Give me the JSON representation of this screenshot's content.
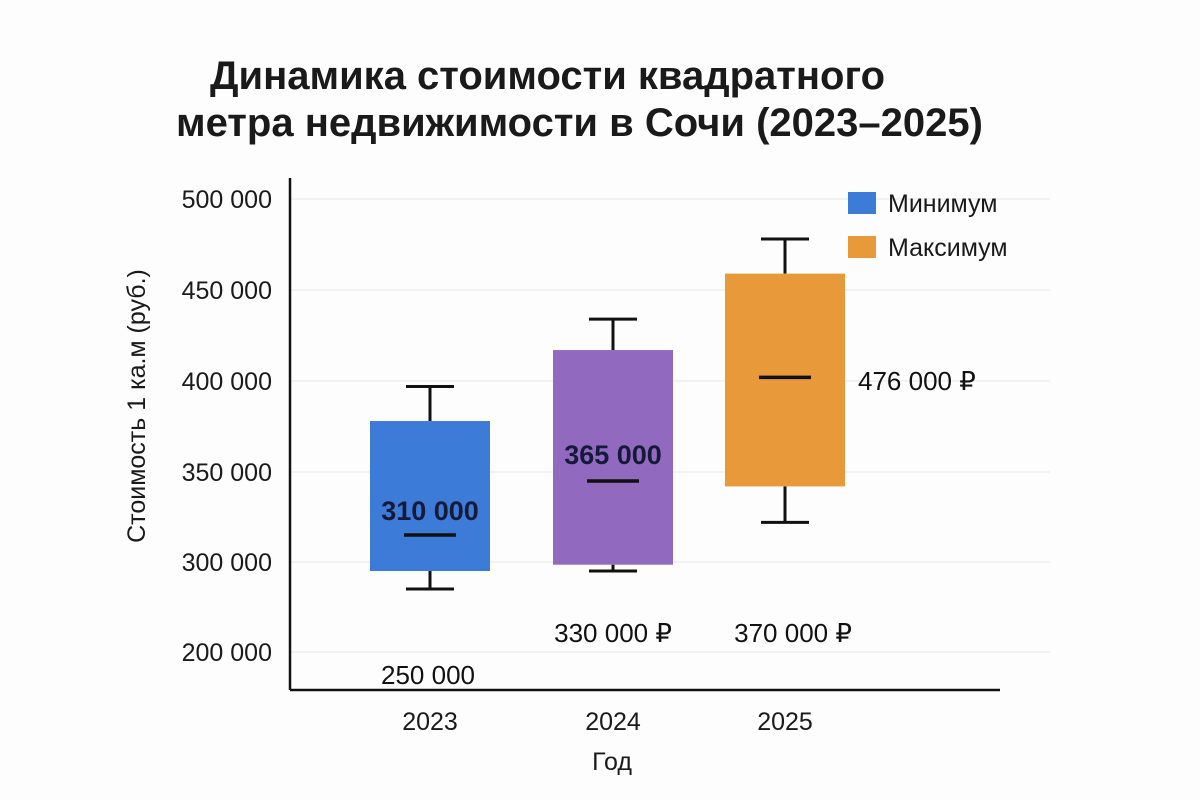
{
  "title_line1": "Динамика стоимости квадратного",
  "title_line2": "метра недвижимости в Сочи (2023–2025)",
  "chart_data": {
    "type": "boxplot",
    "title": "Динамика стоимости квадратного метра недвижимости в Сочи (2023–2025)",
    "xlabel": "Год",
    "ylabel": "Стоимость 1 ка.м (руб.)",
    "categories": [
      "2023",
      "2024",
      "2025"
    ],
    "y_tick_labels": [
      "200 000",
      "300 000",
      "350 000",
      "400 000",
      "450 000",
      "500 000"
    ],
    "grid": "horizontal",
    "legend_position": "top-right",
    "legend": [
      {
        "name": "Минимум",
        "color": "#3d7bd8"
      },
      {
        "name": "Максимум",
        "color": "#e89a3a"
      }
    ],
    "boxes": [
      {
        "category": "2023",
        "color": "#3d7bd8",
        "whisker_low": 270000,
        "box_low": 290000,
        "median": 315000,
        "box_high": 378000,
        "whisker_high": 397000,
        "label_center": "310 000",
        "label_below": "250 000"
      },
      {
        "category": "2024",
        "color": "#9169be",
        "whisker_low": 290000,
        "box_low": 297000,
        "median": 345000,
        "box_high": 417000,
        "whisker_high": 434000,
        "label_center": "365 000",
        "label_below": "330 000 ₽"
      },
      {
        "category": "2025",
        "color": "#e89a3a",
        "whisker_low": 322000,
        "box_low": 342000,
        "median": 402000,
        "box_high": 459000,
        "whisker_high": 478000,
        "label_right": "476 000 ₽",
        "label_below": "370 000 ₽"
      }
    ]
  }
}
